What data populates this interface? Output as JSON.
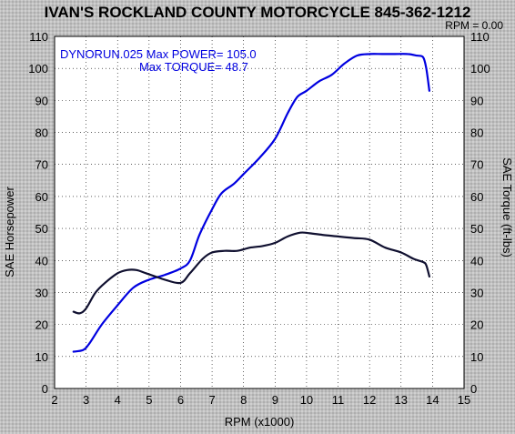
{
  "title": "IVAN'S ROCKLAND COUNTY MOTORCYCLE 845-362-1212",
  "rpm_readout": "RPM = 0.00",
  "annotation_line1": "DYNORUN.025  Max POWER= 105.0",
  "annotation_line2": "Max TORQUE= 48.7",
  "colors": {
    "power": "#0000e0",
    "torque": "#101030",
    "annotation": "#0000e0",
    "grid": "#000000"
  },
  "chart_data": {
    "type": "line",
    "title": "IVAN'S ROCKLAND COUNTY MOTORCYCLE 845-362-1212",
    "xlabel": "RPM (x1000)",
    "ylabel_left": "SAE Horsepower",
    "ylabel_right": "SAE Torque (ft-lbs)",
    "xlim": [
      2,
      15
    ],
    "ylim": [
      0,
      110
    ],
    "x_ticks": [
      "2",
      "3",
      "4",
      "5",
      "6",
      "7",
      "8",
      "9",
      "10",
      "11",
      "12",
      "13",
      "14",
      "15"
    ],
    "y_ticks": [
      "0",
      "10",
      "20",
      "30",
      "40",
      "50",
      "60",
      "70",
      "80",
      "90",
      "100",
      "110"
    ],
    "grid": true,
    "series": [
      {
        "name": "Max POWER",
        "axis": "left",
        "x": [
          2.6,
          2.9,
          3.1,
          3.5,
          4.0,
          4.5,
          5.0,
          5.5,
          6.0,
          6.3,
          6.6,
          7.0,
          7.3,
          7.7,
          8.0,
          8.5,
          9.0,
          9.4,
          9.7,
          10.0,
          10.4,
          10.8,
          11.2,
          11.6,
          12.0,
          12.4,
          12.8,
          13.2,
          13.5,
          13.7,
          13.8,
          13.9
        ],
        "values": [
          11.5,
          12,
          14,
          20,
          26,
          31.5,
          34,
          35.5,
          37.5,
          40,
          48,
          56,
          61,
          64,
          67,
          72,
          78,
          86,
          91,
          93,
          96,
          98,
          101.5,
          104,
          104.5,
          104.5,
          104.5,
          104.5,
          104,
          103.5,
          100,
          93
        ]
      },
      {
        "name": "Max TORQUE",
        "axis": "right",
        "x": [
          2.6,
          2.8,
          3.0,
          3.3,
          3.6,
          4.0,
          4.3,
          4.6,
          4.9,
          5.2,
          5.5,
          6.0,
          6.3,
          6.7,
          7.0,
          7.4,
          7.8,
          8.2,
          8.6,
          9.0,
          9.4,
          9.8,
          10.1,
          10.5,
          11.0,
          11.5,
          12.0,
          12.5,
          13.0,
          13.4,
          13.7,
          13.8,
          13.9
        ],
        "values": [
          24,
          23.5,
          25,
          30,
          33,
          36,
          37,
          37,
          36,
          35,
          34,
          33,
          36,
          40.5,
          42.5,
          43,
          43,
          44,
          44.5,
          45.5,
          47.5,
          48.7,
          48.5,
          48,
          47.5,
          47,
          46.5,
          44,
          42.5,
          40.5,
          39.5,
          38.5,
          35
        ]
      }
    ]
  }
}
